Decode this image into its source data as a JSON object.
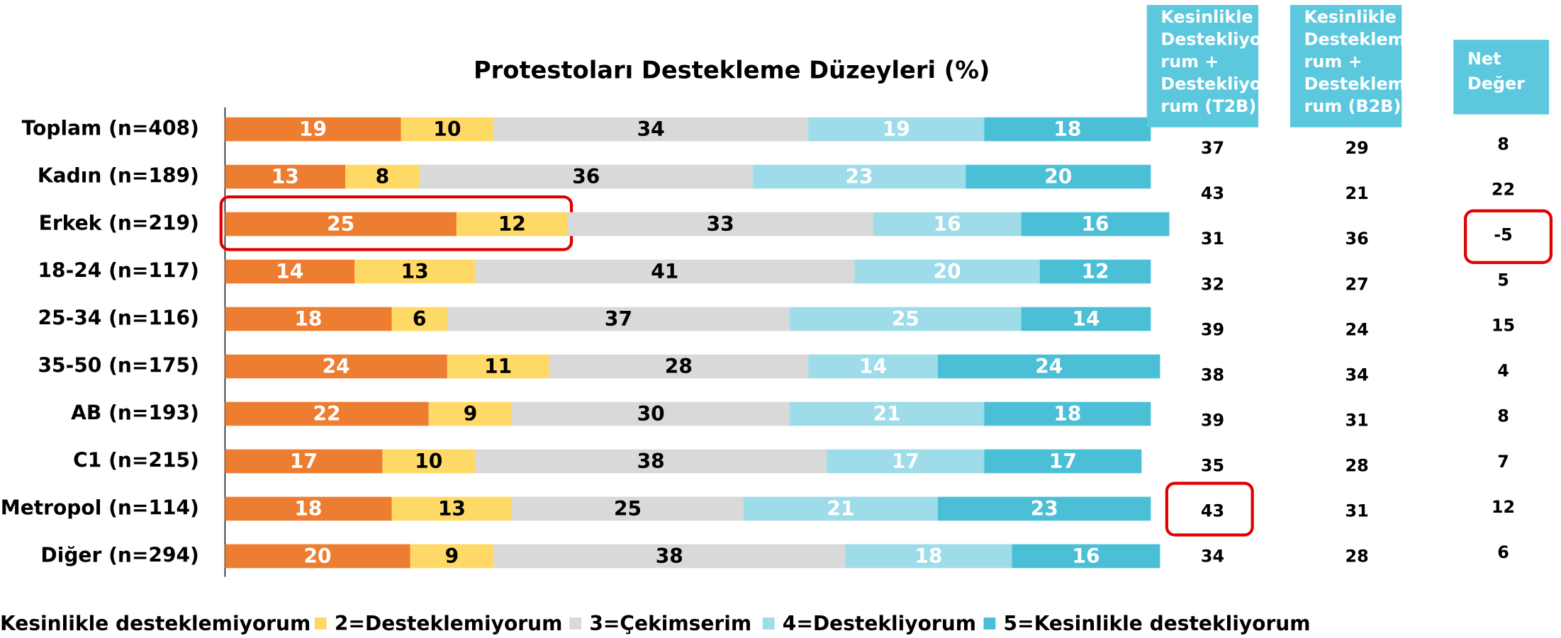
{
  "chart_data": {
    "type": "stacked_barh",
    "title": "Protestoları Destekleme Düzeyleri  (%)",
    "categories": [
      "Toplam (n=408)",
      "Kadın (n=189)",
      "Erkek (n=219)",
      "18-24 (n=117)",
      "25-34 (n=116)",
      "35-50 (n=175)",
      "AB (n=193)",
      "C1 (n=215)",
      "Metropol (n=114)",
      "Diğer (n=294)"
    ],
    "xlim": [
      0,
      100
    ],
    "series": [
      {
        "name": "Kesinlikle desteklemiyorum",
        "color": "#ED7D31",
        "label_color": "#ffffff",
        "values": [
          19,
          13,
          25,
          14,
          18,
          24,
          22,
          17,
          18,
          20
        ]
      },
      {
        "name": "2=Desteklemiyorum",
        "color": "#FFD966",
        "label_color": "#000000",
        "values": [
          10,
          8,
          12,
          13,
          6,
          11,
          9,
          10,
          13,
          9
        ]
      },
      {
        "name": "3=Çekimserim",
        "color": "#D9D9D9",
        "label_color": "#000000",
        "values": [
          34,
          36,
          33,
          41,
          37,
          28,
          30,
          38,
          25,
          38
        ]
      },
      {
        "name": "4=Destekliyorum",
        "color": "#9DDCE8",
        "label_color": "#ffffff",
        "values": [
          19,
          23,
          16,
          20,
          25,
          14,
          21,
          17,
          21,
          18
        ]
      },
      {
        "name": "5=Kesinlikle destekliyorum",
        "color": "#4BBFD6",
        "label_color": "#ffffff",
        "values": [
          18,
          20,
          16,
          12,
          14,
          24,
          18,
          17,
          23,
          16
        ]
      }
    ],
    "legend": "bottom"
  },
  "table": {
    "header_color": "#5BC8DD",
    "headers": [
      [
        "Kesinlikle",
        "Destekliyo",
        "rum +",
        "Destekliyo",
        "rum (T2B)"
      ],
      [
        "Kesinlikle",
        "Desteklemiyo",
        "rum +",
        "Desteklemiyo",
        "rum (B2B)"
      ],
      [
        "Net",
        "Değer"
      ]
    ],
    "rows": [
      [
        37,
        29,
        8
      ],
      [
        43,
        21,
        22
      ],
      [
        31,
        36,
        -5
      ],
      [
        32,
        27,
        5
      ],
      [
        39,
        24,
        15
      ],
      [
        38,
        34,
        4
      ],
      [
        39,
        31,
        8
      ],
      [
        35,
        28,
        7
      ],
      [
        43,
        31,
        12
      ],
      [
        34,
        28,
        6
      ]
    ]
  }
}
